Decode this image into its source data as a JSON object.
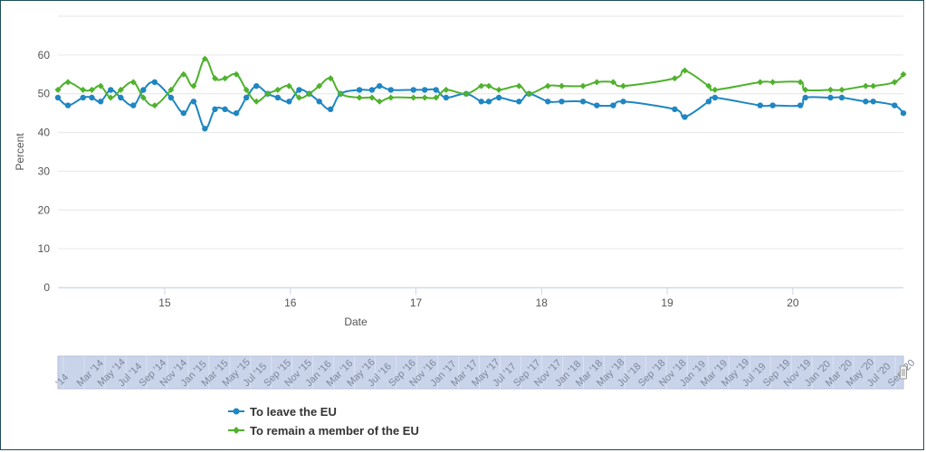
{
  "chart_data": {
    "type": "line",
    "xlabel": "Date",
    "ylabel": "Percent",
    "ylim": [
      0,
      70
    ],
    "yticks": [
      0,
      10,
      20,
      30,
      40,
      50,
      60
    ],
    "x_tick_labels": [
      "15",
      "16",
      "17",
      "18",
      "19",
      "20"
    ],
    "x_tick_values": [
      2015.0,
      2016.0,
      2017.0,
      2018.0,
      2019.0,
      2020.0
    ],
    "xlim": [
      2014.15,
      2020.88
    ],
    "grid": true,
    "legend_position": "bottom",
    "colors": {
      "leave": "#1f86c2",
      "remain": "#4fb22d"
    },
    "navigator_labels": [
      "'14",
      "Mar '14",
      "May '14",
      "Jul '14",
      "Sep '14",
      "Nov '14",
      "Jan '15",
      "Mar '15",
      "May '15",
      "Jul '15",
      "Sep '15",
      "Nov '15",
      "Jan '16",
      "Mar '16",
      "May '16",
      "Jul '16",
      "Sep '16",
      "Nov '16",
      "Jan '17",
      "Mar '17",
      "May '17",
      "Jul '17",
      "Sep '17",
      "Nov '17",
      "Jan '18",
      "Mar '18",
      "May '18",
      "Jul '18",
      "Sep '18",
      "Nov '18",
      "Jan '19",
      "Mar '19",
      "May '19",
      "Jul '19",
      "Sep '19",
      "Nov '19",
      "Jan '20",
      "Mar '20",
      "May '20",
      "Jul '20",
      "Sep '20"
    ],
    "series": [
      {
        "name": "To leave the EU",
        "x": [
          2014.15,
          2014.23,
          2014.35,
          2014.42,
          2014.49,
          2014.57,
          2014.65,
          2014.75,
          2014.83,
          2014.92,
          2015.05,
          2015.15,
          2015.23,
          2015.32,
          2015.4,
          2015.48,
          2015.57,
          2015.65,
          2015.73,
          2015.82,
          2015.9,
          2015.99,
          2016.07,
          2016.15,
          2016.23,
          2016.32,
          2016.4,
          2016.55,
          2016.65,
          2016.71,
          2016.8,
          2016.98,
          2017.07,
          2017.16,
          2017.24,
          2017.4,
          2017.52,
          2017.58,
          2017.66,
          2017.82,
          2017.9,
          2018.05,
          2018.16,
          2018.33,
          2018.44,
          2018.57,
          2018.65,
          2019.06,
          2019.14,
          2019.33,
          2019.38,
          2019.74,
          2019.84,
          2020.06,
          2020.1,
          2020.3,
          2020.39,
          2020.58,
          2020.64,
          2020.81,
          2020.88
        ],
        "values": [
          49,
          47,
          49,
          49,
          48,
          51,
          49,
          47,
          51,
          53,
          49,
          45,
          48,
          41,
          46,
          46,
          45,
          49,
          52,
          50,
          49,
          48,
          51,
          50,
          48,
          46,
          50,
          51,
          51,
          52,
          51,
          51,
          51,
          51,
          49,
          50,
          48,
          48,
          49,
          48,
          50,
          48,
          48,
          48,
          47,
          47,
          48,
          46,
          44,
          48,
          49,
          47,
          47,
          47,
          49,
          49,
          49,
          48,
          48,
          47,
          45
        ]
      },
      {
        "name": "To remain a member of the EU",
        "x": [
          2014.15,
          2014.23,
          2014.35,
          2014.42,
          2014.49,
          2014.57,
          2014.65,
          2014.75,
          2014.83,
          2014.92,
          2015.05,
          2015.15,
          2015.23,
          2015.32,
          2015.4,
          2015.48,
          2015.57,
          2015.65,
          2015.73,
          2015.82,
          2015.9,
          2015.99,
          2016.07,
          2016.15,
          2016.23,
          2016.32,
          2016.4,
          2016.55,
          2016.65,
          2016.71,
          2016.8,
          2016.98,
          2017.07,
          2017.16,
          2017.24,
          2017.4,
          2017.52,
          2017.58,
          2017.66,
          2017.82,
          2017.9,
          2018.05,
          2018.16,
          2018.33,
          2018.44,
          2018.57,
          2018.65,
          2019.06,
          2019.14,
          2019.33,
          2019.38,
          2019.74,
          2019.84,
          2020.06,
          2020.1,
          2020.3,
          2020.39,
          2020.58,
          2020.64,
          2020.81,
          2020.88
        ],
        "values": [
          51,
          53,
          51,
          51,
          52,
          49,
          51,
          53,
          49,
          47,
          51,
          55,
          52,
          59,
          54,
          54,
          55,
          51,
          48,
          50,
          51,
          52,
          49,
          50,
          52,
          54,
          50,
          49,
          49,
          48,
          49,
          49,
          49,
          49,
          51,
          50,
          52,
          52,
          51,
          52,
          50,
          52,
          52,
          52,
          53,
          53,
          52,
          54,
          56,
          52,
          51,
          53,
          53,
          53,
          51,
          51,
          51,
          52,
          52,
          53,
          55
        ]
      }
    ]
  }
}
